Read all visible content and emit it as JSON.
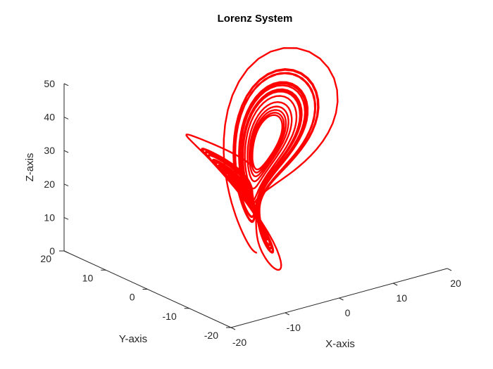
{
  "chart_data": {
    "type": "line",
    "projection": "3d",
    "title": "Lorenz System",
    "xlabel": "X-axis",
    "ylabel": "Y-axis",
    "zlabel": "Z-axis",
    "xlim": [
      -20,
      20
    ],
    "ylim": [
      -20,
      20
    ],
    "zlim": [
      0,
      50
    ],
    "xticks": [
      "-20",
      "-10",
      "0",
      "10",
      "20"
    ],
    "yticks": [
      "20",
      "10",
      "0",
      "-10",
      "-20"
    ],
    "zticks": [
      "0",
      "10",
      "20",
      "30",
      "40",
      "50"
    ],
    "grid": false,
    "series": [
      {
        "color": "#ff0000",
        "generator": "lorenz",
        "sigma": 10,
        "rho": 28,
        "beta": 2.667,
        "initial": [
          1,
          1,
          1
        ],
        "t_end": 40
      }
    ]
  }
}
